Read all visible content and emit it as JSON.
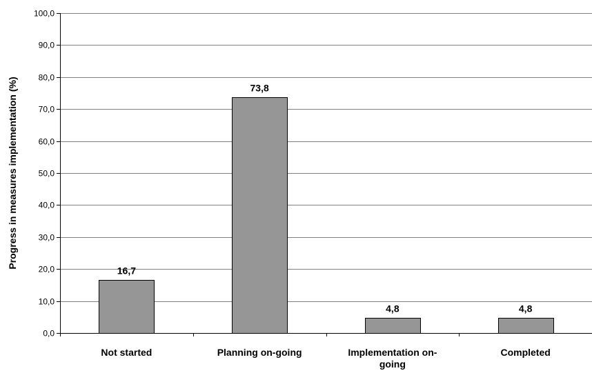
{
  "chart_data": {
    "type": "bar",
    "categories": [
      "Not started",
      "Planning on-going",
      "Implementation on-going",
      "Completed"
    ],
    "category_lines": [
      [
        "Not started"
      ],
      [
        "Planning on-going"
      ],
      [
        "Implementation on-",
        "going"
      ],
      [
        "Completed"
      ]
    ],
    "values": [
      16.7,
      73.8,
      4.8,
      4.8
    ],
    "value_labels": [
      "16,7",
      "73,8",
      "4,8",
      "4,8"
    ],
    "ylabel": "Progress in measures implementation (%)",
    "ylim": [
      0,
      100
    ],
    "yticks": [
      0,
      10,
      20,
      30,
      40,
      50,
      60,
      70,
      80,
      90,
      100
    ],
    "ytick_labels": [
      "0,0",
      "10,0",
      "20,0",
      "30,0",
      "40,0",
      "50,0",
      "60,0",
      "70,0",
      "80,0",
      "90,0",
      "100,0"
    ],
    "grid": true,
    "colors": {
      "bar_fill": "#969696",
      "bar_stroke": "#000000",
      "grid": "#000000"
    }
  }
}
